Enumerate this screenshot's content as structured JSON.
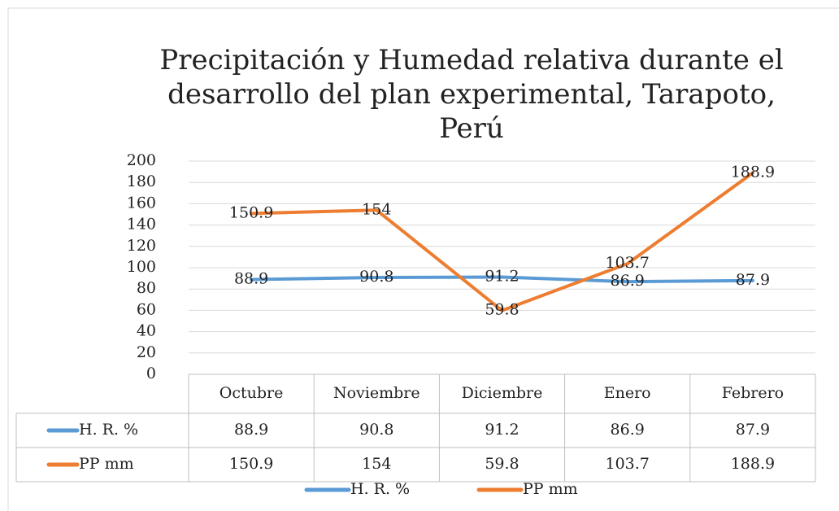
{
  "chart_data": {
    "type": "line",
    "title": "Precipitación y Humedad relativa durante el desarrollo del plan experimental, Tarapoto, Perú",
    "categories": [
      "Octubre",
      "Noviembre",
      "Diciembre",
      "Enero",
      "Febrero"
    ],
    "series": [
      {
        "name": "H. R. %",
        "color": "#5b9bd5",
        "values": [
          88.9,
          90.8,
          91.2,
          86.9,
          87.9
        ]
      },
      {
        "name": "PP mm",
        "color": "#ed7d31",
        "values": [
          150.9,
          154,
          59.8,
          103.7,
          188.9
        ]
      }
    ],
    "ylim": [
      0,
      200
    ],
    "yticks": [
      0,
      20,
      40,
      60,
      80,
      100,
      120,
      140,
      160,
      180,
      200
    ],
    "grid": true,
    "legend": "bottom",
    "data_table": true
  }
}
